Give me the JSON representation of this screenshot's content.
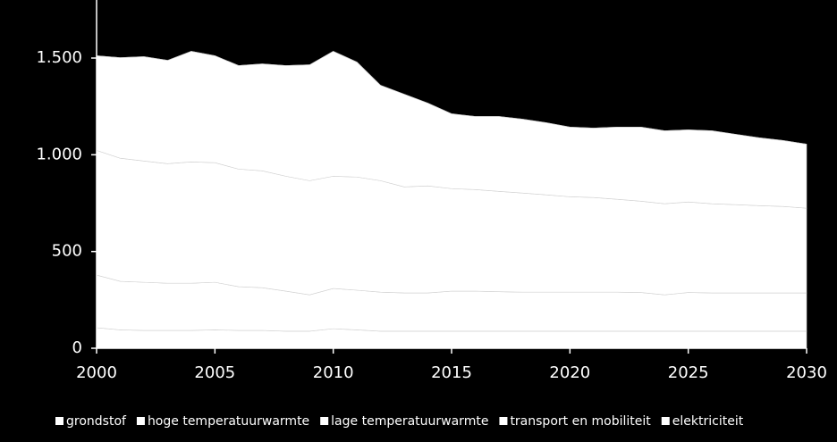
{
  "chart_data": {
    "type": "stacked-area",
    "x": [
      2000,
      2001,
      2002,
      2003,
      2004,
      2005,
      2006,
      2007,
      2008,
      2009,
      2010,
      2011,
      2012,
      2013,
      2014,
      2015,
      2016,
      2017,
      2018,
      2019,
      2020,
      2021,
      2022,
      2023,
      2024,
      2025,
      2026,
      2027,
      2028,
      2029,
      2030
    ],
    "xlim": [
      2000,
      2030
    ],
    "xticks": [
      2000,
      2005,
      2010,
      2015,
      2020,
      2025,
      2030
    ],
    "ylim": [
      0,
      1800
    ],
    "yticks": [
      0,
      500,
      {
        "value": 1000,
        "label": "1.000"
      },
      {
        "value": 1500,
        "label": "1.500"
      }
    ],
    "series": [
      {
        "name": "grondstof",
        "color": "#ffffff",
        "values": [
          106,
          95,
          92,
          92,
          92,
          95,
          92,
          92,
          88,
          88,
          101,
          95,
          88,
          88,
          88,
          88,
          88,
          88,
          88,
          88,
          88,
          88,
          88,
          88,
          88,
          88,
          88,
          88,
          88,
          88,
          88
        ]
      },
      {
        "name": "hoge temperatuurwarmte",
        "color": "#ffffff",
        "values": [
          272,
          251,
          249,
          244,
          244,
          246,
          226,
          221,
          207,
          188,
          208,
          205,
          202,
          198,
          198,
          207,
          207,
          204,
          202,
          202,
          202,
          202,
          202,
          200,
          188,
          200,
          198,
          198,
          198,
          198,
          198
        ]
      },
      {
        "name": "lage temperatuurwarmte",
        "color": "#ffffff",
        "values": [
          645,
          636,
          627,
          618,
          627,
          618,
          608,
          604,
          594,
          590,
          580,
          585,
          576,
          548,
          553,
          530,
          525,
          519,
          512,
          503,
          493,
          489,
          480,
          472,
          471,
          468,
          461,
          456,
          451,
          447,
          438
        ]
      },
      {
        "name": "transport en mobiliteit",
        "color": "#ffffff",
        "values": [
          489,
          520,
          539,
          534,
          572,
          553,
          535,
          553,
          572,
          599,
          646,
          594,
          493,
          479,
          428,
          387,
          378,
          387,
          382,
          373,
          360,
          359,
          373,
          383,
          377,
          373,
          377,
          364,
          351,
          341,
          331
        ]
      },
      {
        "name": "elektriciteit",
        "color": "#ffffff",
        "values": [
          0,
          0,
          0,
          0,
          0,
          0,
          0,
          0,
          0,
          0,
          0,
          0,
          0,
          0,
          0,
          0,
          0,
          0,
          0,
          0,
          0,
          0,
          0,
          0,
          0,
          0,
          0,
          0,
          0,
          0,
          0
        ]
      }
    ]
  }
}
